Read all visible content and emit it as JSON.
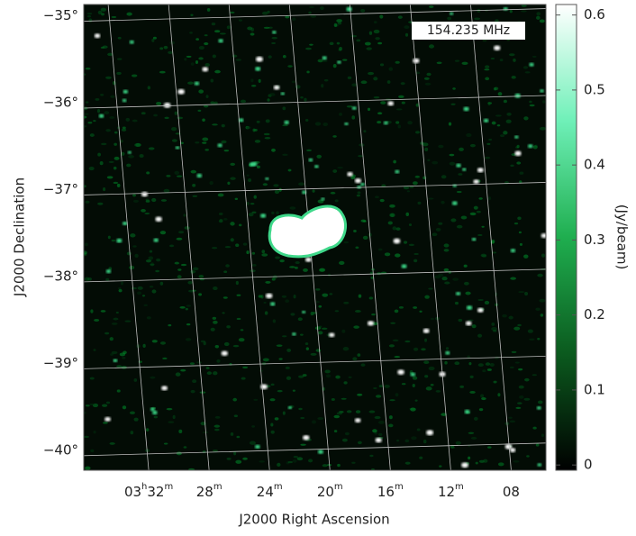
{
  "chart_data": {
    "type": "image",
    "annotation": "154.235 MHz",
    "x_label": "J2000 Right Ascension",
    "y_label": "J2000 Declination",
    "xlim": [
      216.3,
      185.7
    ],
    "xticks": [
      {
        "value": 212,
        "label": "03h32m"
      },
      {
        "value": 208,
        "label": "28m"
      },
      {
        "value": 204,
        "label": "24m"
      },
      {
        "value": 200,
        "label": "20m"
      },
      {
        "value": 196,
        "label": "16m"
      },
      {
        "value": 192,
        "label": "12m"
      },
      {
        "value": 188,
        "label": "08"
      }
    ],
    "ylim": [
      -40.23,
      -34.87
    ],
    "yticks": [
      {
        "value": -35,
        "label": "−35°"
      },
      {
        "value": -36,
        "label": "−36°"
      },
      {
        "value": -37,
        "label": "−37°"
      },
      {
        "value": -38,
        "label": "−38°"
      },
      {
        "value": -39,
        "label": "−39°"
      },
      {
        "value": -40,
        "label": "−40°"
      }
    ],
    "grid": true,
    "colorbar": {
      "label": "(Jy/beam)",
      "lim": [
        -0.007,
        0.614
      ],
      "ticks": [
        0,
        0.1,
        0.2,
        0.3,
        0.4,
        0.5,
        0.6
      ]
    }
  }
}
